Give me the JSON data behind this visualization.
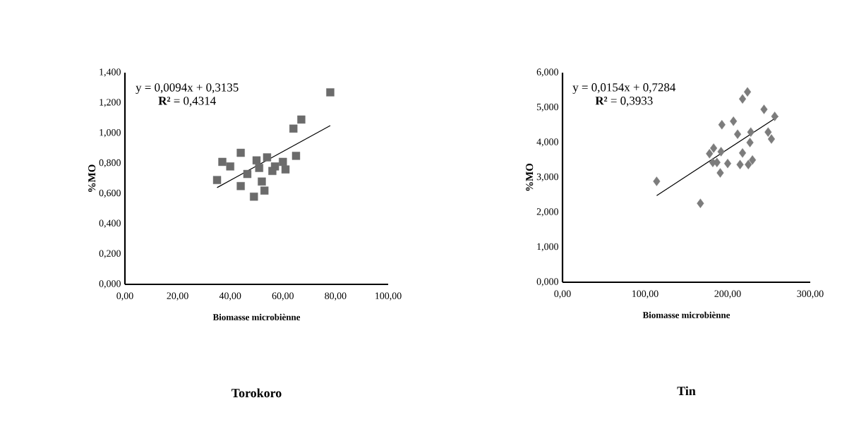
{
  "chart_data": [
    {
      "type": "scatter",
      "title": "Torokoro",
      "xlabel": "Biomasse microbiènne",
      "ylabel": "%MO",
      "marker": "square",
      "grid": false,
      "xlim": [
        0,
        100
      ],
      "ylim": [
        0,
        1.4
      ],
      "xticks": [
        {
          "value": 0,
          "label": "0,00"
        },
        {
          "value": 20,
          "label": "20,00"
        },
        {
          "value": 40,
          "label": "40,00"
        },
        {
          "value": 60,
          "label": "60,00"
        },
        {
          "value": 80,
          "label": "80,00"
        },
        {
          "value": 100,
          "label": "100,00"
        }
      ],
      "yticks": [
        {
          "value": 0,
          "label": "0,000"
        },
        {
          "value": 0.2,
          "label": "0,200"
        },
        {
          "value": 0.4,
          "label": "0,400"
        },
        {
          "value": 0.6,
          "label": "0,600"
        },
        {
          "value": 0.8,
          "label": "0,800"
        },
        {
          "value": 1.0,
          "label": "1,000"
        },
        {
          "value": 1.2,
          "label": "1,200"
        },
        {
          "value": 1.4,
          "label": "1,400"
        }
      ],
      "annotations": [
        "y = 0,0094x + 0,3135",
        "**R²** = 0,4314"
      ],
      "series": [
        {
          "color": "#6b6b6b",
          "x": [
            78,
            67,
            64,
            44,
            65,
            54,
            37,
            50,
            60,
            40,
            51,
            61,
            57,
            35,
            44,
            52,
            53,
            49,
            46.5,
            56
          ],
          "values": [
            1.27,
            1.09,
            1.03,
            0.87,
            0.85,
            0.84,
            0.81,
            0.82,
            0.81,
            0.78,
            0.77,
            0.76,
            0.78,
            0.69,
            0.65,
            0.68,
            0.62,
            0.58,
            0.73,
            0.75
          ]
        },
        {
          "type": "line",
          "color": "#000000",
          "marker": "none",
          "x": [
            35,
            78
          ],
          "values": [
            0.64,
            1.05
          ]
        }
      ]
    },
    {
      "type": "scatter",
      "title": "Tin",
      "xlabel": "Biomasse microbiènne",
      "ylabel": "%MO",
      "marker": "diamond",
      "grid": false,
      "xlim": [
        0,
        300
      ],
      "ylim": [
        0,
        6
      ],
      "xticks": [
        {
          "value": 0,
          "label": "0,00"
        },
        {
          "value": 100,
          "label": "100,00"
        },
        {
          "value": 200,
          "label": "200,00"
        },
        {
          "value": 300,
          "label": "300,00"
        }
      ],
      "yticks": [
        {
          "value": 0,
          "label": "0,000"
        },
        {
          "value": 1,
          "label": "1,000"
        },
        {
          "value": 2,
          "label": "2,000"
        },
        {
          "value": 3,
          "label": "3,000"
        },
        {
          "value": 4,
          "label": "4,000"
        },
        {
          "value": 5,
          "label": "5,000"
        },
        {
          "value": 6,
          "label": "6,000"
        }
      ],
      "annotations": [
        "y = 0,0154x + 0,7284",
        "**R²** = 0,3933"
      ],
      "series": [
        {
          "color": "#7c7c7c",
          "x": [
            114,
            167,
            224,
            218,
            244,
            257,
            193,
            207,
            212,
            228,
            249,
            253,
            227,
            183,
            192,
            178,
            218,
            187,
            200,
            215,
            230,
            225,
            191,
            182
          ],
          "values": [
            2.89,
            2.26,
            5.45,
            5.25,
            4.95,
            4.75,
            4.51,
            4.61,
            4.24,
            4.3,
            4.3,
            4.1,
            4.0,
            3.84,
            3.74,
            3.68,
            3.7,
            3.43,
            3.4,
            3.37,
            3.5,
            3.37,
            3.13,
            3.43
          ]
        },
        {
          "type": "line",
          "color": "#000000",
          "marker": "none",
          "x": [
            114,
            261
          ],
          "values": [
            2.48,
            4.75
          ]
        }
      ]
    }
  ]
}
